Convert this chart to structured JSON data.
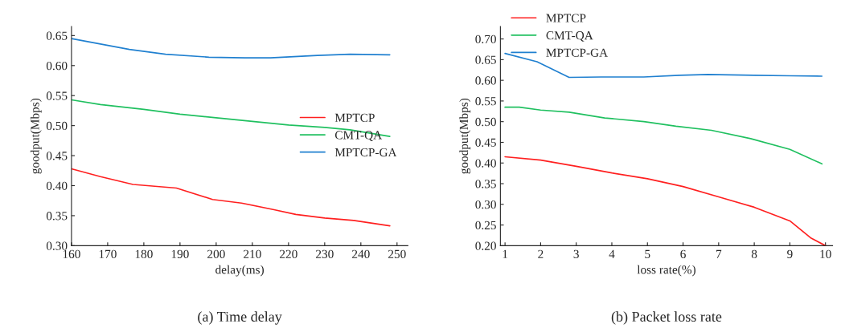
{
  "chart_data": [
    {
      "type": "line",
      "xlabel": "delay(ms)",
      "ylabel": "goodput(Mbps)",
      "xlim": [
        160,
        253
      ],
      "xticks": [
        160,
        170,
        180,
        190,
        200,
        210,
        220,
        230,
        240,
        250
      ],
      "ylim": [
        0.3,
        0.665
      ],
      "yticks": [
        {
          "value": 0.3,
          "label": "0.30"
        },
        0.35,
        {
          "value": 0.4,
          "label": "0.40"
        },
        0.45,
        {
          "value": 0.5,
          "label": "0.50"
        },
        0.55,
        {
          "value": 0.6,
          "label": "0.60"
        },
        0.65
      ],
      "grid": false,
      "legend": "right",
      "annotations": [
        "(a) Time delay"
      ],
      "series": [
        {
          "name": "MPTCP",
          "color": "#ff2020",
          "x": [
            160,
            168,
            177,
            189,
            199,
            207,
            216,
            222,
            230,
            238,
            248
          ],
          "values": [
            0.428,
            0.415,
            0.402,
            0.396,
            0.377,
            0.371,
            0.36,
            0.352,
            0.346,
            0.342,
            0.333
          ]
        },
        {
          "name": "CMT-QA",
          "color": "#20c060",
          "x": [
            160,
            168,
            180,
            190,
            200,
            210,
            220,
            230,
            237,
            248
          ],
          "values": [
            0.543,
            0.535,
            0.527,
            0.519,
            0.513,
            0.507,
            0.501,
            0.497,
            0.493,
            0.482
          ]
        },
        {
          "name": "MPTCP-GA",
          "color": "#2080d0",
          "x": [
            160,
            176,
            186,
            198,
            208,
            215,
            228,
            237,
            248
          ],
          "values": [
            0.645,
            0.627,
            0.619,
            0.614,
            0.613,
            0.613,
            0.617,
            0.619,
            0.618
          ]
        }
      ]
    },
    {
      "type": "line",
      "xlabel": "loss rate(%)",
      "ylabel": "goodput(Mbps)",
      "xlim": [
        0.87,
        10.2
      ],
      "xticks": [
        1,
        2,
        3,
        4,
        5,
        6,
        7,
        8,
        9,
        10
      ],
      "ylim": [
        0.2,
        0.73
      ],
      "yticks": [
        {
          "value": 0.2,
          "label": "0.20"
        },
        0.25,
        {
          "value": 0.3,
          "label": "0.30"
        },
        0.35,
        {
          "value": 0.4,
          "label": "0.40"
        },
        0.45,
        {
          "value": 0.5,
          "label": "0.50"
        },
        0.55,
        {
          "value": 0.6,
          "label": "0.60"
        },
        0.65,
        {
          "value": 0.7,
          "label": "0.70"
        }
      ],
      "grid": false,
      "legend": "top left",
      "annotations": [
        "(b) Packet loss rate"
      ],
      "series": [
        {
          "name": "MPTCP",
          "color": "#ff2020",
          "x": [
            1,
            2,
            3,
            4,
            5,
            6,
            7,
            8,
            9,
            9.6,
            10
          ],
          "values": [
            0.415,
            0.407,
            0.392,
            0.376,
            0.362,
            0.343,
            0.318,
            0.293,
            0.26,
            0.218,
            0.2
          ]
        },
        {
          "name": "CMT-QA",
          "color": "#20c060",
          "x": [
            1,
            1.4,
            2,
            2.8,
            3.8,
            4.9,
            5.8,
            6.8,
            7.9,
            9,
            9.9
          ],
          "values": [
            0.535,
            0.535,
            0.528,
            0.523,
            0.509,
            0.5,
            0.489,
            0.479,
            0.459,
            0.433,
            0.398
          ]
        },
        {
          "name": "MPTCP-GA",
          "color": "#2080d0",
          "x": [
            1,
            1.9,
            2.8,
            3.7,
            4.9,
            5.9,
            6.7,
            8,
            9,
            9.9
          ],
          "values": [
            0.665,
            0.645,
            0.607,
            0.608,
            0.608,
            0.612,
            0.614,
            0.612,
            0.611,
            0.61
          ]
        }
      ]
    }
  ]
}
